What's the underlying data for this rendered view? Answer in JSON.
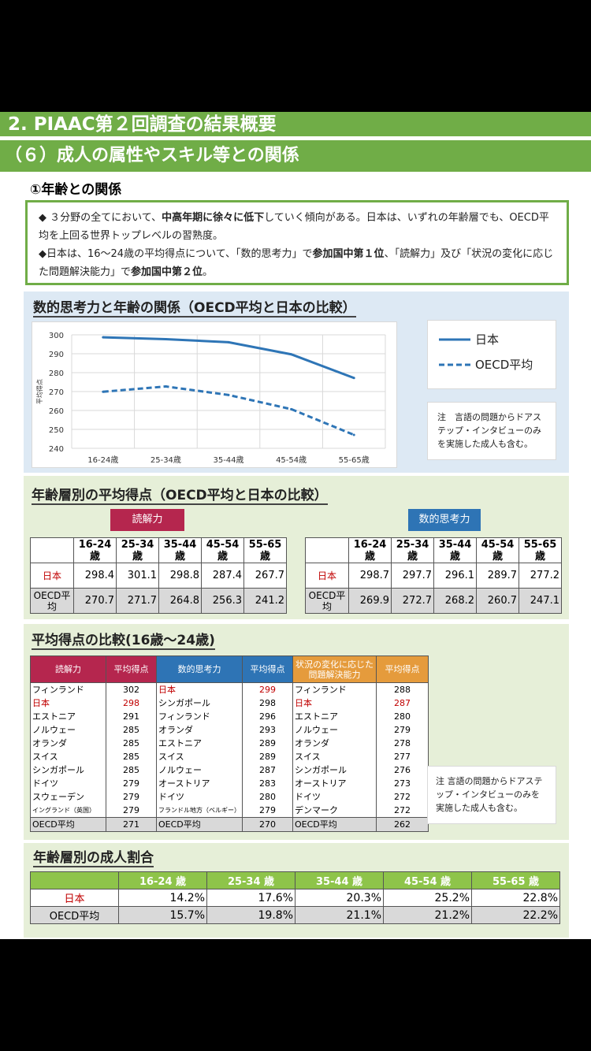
{
  "header": {
    "title": "2. PIAAC第２回調査の結果概要",
    "subtitle": "（６）成人の属性やスキル等との関係"
  },
  "section1": {
    "title": "①年齢との関係",
    "bullet1_a": "◆ ３分野の全てにおいて、",
    "bullet1_b": "中高年期に徐々に低下",
    "bullet1_c": "していく傾向がある。日本は、いずれの年齢層でも、OECD平均を上回る世界トップレベルの習熟度。",
    "bullet2_a": "◆日本は、16～24歳の平均得点について、「数的思考力」で",
    "bullet2_b": "参加国中第１位",
    "bullet2_c": "、「読解力」及び「状況の変化に応じた問題解決能力」で",
    "bullet2_d": "参加国中第２位",
    "bullet2_e": "。"
  },
  "chart_section": {
    "title": "数的思考力と年齢の関係（OECD平均と日本の比較）",
    "legend_japan": "日本",
    "legend_oecd": "OECD平均",
    "note": "注　言語の問題からドアステップ・インタビューのみを実施した成人も含む。"
  },
  "chart_data": {
    "type": "line",
    "title": "数的思考力と年齢の関係（OECD平均と日本の比較）",
    "ylabel": "平均得点",
    "categories": [
      "16-24歳",
      "25-34歳",
      "35-44歳",
      "45-54歳",
      "55-65歳"
    ],
    "yticks": [
      "300",
      "290",
      "280",
      "270",
      "260",
      "250",
      "240"
    ],
    "ylim": [
      240,
      300
    ],
    "series": [
      {
        "name": "日本",
        "values": [
          298.7,
          297.7,
          296.1,
          289.7,
          277.2
        ]
      },
      {
        "name": "OECD平均",
        "values": [
          269.9,
          272.7,
          268.2,
          260.7,
          247.1
        ]
      }
    ],
    "grid": true,
    "legend": "right"
  },
  "age_table_section": {
    "title": "年齢層別の平均得点（OECD平均と日本の比較）",
    "reading_tag": "読解力",
    "numeracy_tag": "数的思考力",
    "headers": [
      "16-24歳",
      "25-34歳",
      "35-44歳",
      "45-54歳",
      "55-65歳"
    ],
    "row_labels": [
      "日本",
      "OECD平均"
    ],
    "reading": [
      [
        "298.4",
        "301.1",
        "298.8",
        "287.4",
        "267.7"
      ],
      [
        "270.7",
        "271.7",
        "264.8",
        "256.3",
        "241.2"
      ]
    ],
    "numeracy": [
      [
        "298.7",
        "297.7",
        "296.1",
        "289.7",
        "277.2"
      ],
      [
        "269.9",
        "272.7",
        "268.2",
        "260.7",
        "247.1"
      ]
    ]
  },
  "compare_section": {
    "title": "平均得点の比較(16歳～24歳)",
    "headers": [
      "読解力",
      "平均得点",
      "数的思考力",
      "平均得点",
      "状況の変化に応じた問題解決能力",
      "平均得点"
    ],
    "rows": [
      [
        "フィンランド",
        "302",
        "日本",
        "299",
        "フィンランド",
        "288"
      ],
      [
        "日本",
        "298",
        "シンガポール",
        "298",
        "日本",
        "287"
      ],
      [
        "エストニア",
        "291",
        "フィンランド",
        "296",
        "エストニア",
        "280"
      ],
      [
        "ノルウェー",
        "285",
        "オランダ",
        "293",
        "ノルウェー",
        "279"
      ],
      [
        "オランダ",
        "285",
        "エストニア",
        "289",
        "オランダ",
        "278"
      ],
      [
        "スイス",
        "285",
        "スイス",
        "289",
        "スイス",
        "277"
      ],
      [
        "シンガポール",
        "285",
        "ノルウェー",
        "287",
        "シンガポール",
        "276"
      ],
      [
        "ドイツ",
        "279",
        "オーストリア",
        "283",
        "オーストリア",
        "273"
      ],
      [
        "スウェーデン",
        "279",
        "ドイツ",
        "280",
        "ドイツ",
        "272"
      ],
      [
        "イングランド（英国）",
        "279",
        "フランドル地方（ベルギー）",
        "279",
        "デンマーク",
        "272"
      ]
    ],
    "last_row": [
      "OECD平均",
      "271",
      "OECD平均",
      "270",
      "OECD平均",
      "262"
    ],
    "note": "注 言語の問題からドアステップ・インタビューのみを実施した成人も含む。"
  },
  "ratio_section": {
    "title": "年齢層別の成人割合",
    "headers": [
      "16-24 歳",
      "25-34 歳",
      "35-44 歳",
      "45-54 歳",
      "55-65 歳"
    ],
    "row_labels": [
      "日本",
      "OECD平均"
    ],
    "rows": [
      [
        "14.2%",
        "17.6%",
        "20.3%",
        "25.2%",
        "22.8%"
      ],
      [
        "15.7%",
        "19.8%",
        "21.1%",
        "21.2%",
        "22.2%"
      ]
    ]
  },
  "colors": {
    "green": "#70ad47",
    "reading": "#b5264e",
    "numeracy": "#2e74b5",
    "problem": "#e59b3c",
    "line": "#2e75b6"
  }
}
